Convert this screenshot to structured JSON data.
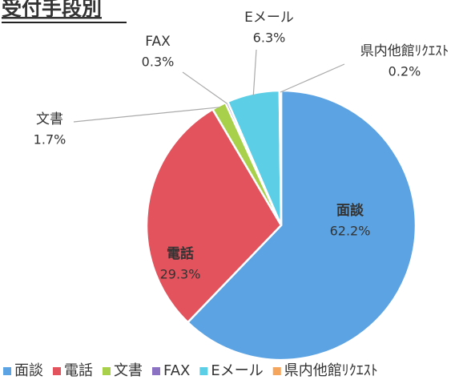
{
  "chart_data": {
    "type": "pie",
    "title": "受付手段別",
    "categories": [
      "面談",
      "電話",
      "文書",
      "FAX",
      "Eメール",
      "県内他館ﾘｸｴｽﾄ"
    ],
    "values": [
      62.2,
      29.3,
      1.7,
      0.3,
      6.3,
      0.2
    ],
    "value_labels": [
      "62.2%",
      "29.3%",
      "1.7%",
      "0.3%",
      "6.3%",
      "0.2%"
    ],
    "colors": [
      "#5ba3e2",
      "#e2535d",
      "#a9d04b",
      "#8b72c2",
      "#5ccee6",
      "#f5a55c"
    ],
    "legend": "bottom"
  }
}
